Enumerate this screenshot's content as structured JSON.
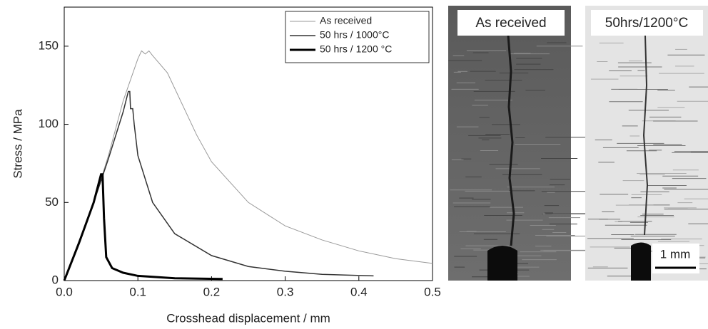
{
  "chart_data": {
    "type": "line",
    "x_label": "Crosshead displacement / mm",
    "y_label": "Stress / MPa",
    "xlim": [
      0,
      0.5
    ],
    "ylim": [
      0,
      175
    ],
    "xticks": [
      {
        "value": 0,
        "label": "0.0"
      },
      0.1,
      0.2,
      0.3,
      0.4,
      0.5
    ],
    "yticks": [
      0,
      50,
      100,
      150
    ],
    "legend": "top-right",
    "series": [
      {
        "name": "As received",
        "color": "#999999",
        "line_width": 1,
        "x": [
          0,
          0.02,
          0.04,
          0.06,
          0.08,
          0.1,
          0.105,
          0.11,
          0.115,
          0.12,
          0.14,
          0.16,
          0.18,
          0.2,
          0.25,
          0.3,
          0.35,
          0.4,
          0.45,
          0.5
        ],
        "values": [
          0,
          25,
          50,
          80,
          115,
          142,
          147,
          145,
          147,
          144,
          133,
          113,
          93,
          76,
          50,
          35,
          26,
          19,
          14,
          11
        ]
      },
      {
        "name": "50 hrs / 1000°C",
        "color": "#333333",
        "line_width": 1.5,
        "x": [
          0,
          0.02,
          0.04,
          0.06,
          0.08,
          0.087,
          0.089,
          0.09,
          0.093,
          0.095,
          0.1,
          0.12,
          0.15,
          0.2,
          0.25,
          0.3,
          0.35,
          0.42
        ],
        "values": [
          0,
          25,
          50,
          78,
          108,
          121,
          121,
          110,
          110,
          100,
          80,
          50,
          30,
          16,
          9,
          6,
          4,
          3
        ]
      },
      {
        "name": "50 hrs / 1200 °C",
        "color": "#000000",
        "line_width": 3,
        "x": [
          0,
          0.02,
          0.04,
          0.05,
          0.052,
          0.054,
          0.057,
          0.065,
          0.08,
          0.1,
          0.15,
          0.215
        ],
        "values": [
          0,
          24,
          50,
          68,
          68,
          40,
          15,
          8,
          5,
          3,
          1.5,
          1
        ]
      }
    ]
  },
  "images": [
    {
      "label": "As received"
    },
    {
      "label": "50hrs/1200°C",
      "scale_bar": "1 mm"
    }
  ]
}
